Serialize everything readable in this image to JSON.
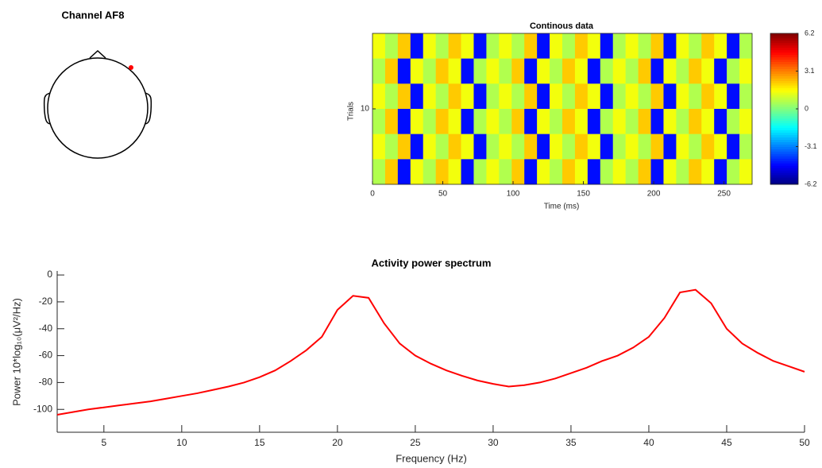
{
  "chart_data": [
    {
      "type": "topo",
      "title": "Channel AF8"
    },
    {
      "type": "heatmap",
      "title": "Continous data",
      "xlabel": "Time (ms)",
      "ylabel": "Trials",
      "xlim": [
        0,
        270
      ],
      "xticks": [
        0,
        50,
        100,
        150,
        200,
        250
      ],
      "ylim": [
        0.5,
        19.5
      ],
      "yticks": [
        10
      ],
      "clim": [
        -6.2,
        6.2
      ],
      "cticks": [
        -6.2,
        -3.1,
        0,
        3.1,
        6.2
      ],
      "colormap": "jet",
      "values": [
        [
          1.4,
          0.6,
          2.2,
          -4.5,
          1.4,
          0.6,
          2.2,
          1.4,
          -4.5,
          0.6,
          1.4,
          0.6,
          2.2,
          -4.5,
          1.4,
          0.6,
          2.2,
          1.4,
          -4.5,
          0.6,
          1.4,
          0.6,
          2.2,
          -4.5,
          1.4,
          0.6,
          2.2,
          1.4,
          -4.5,
          0.6
        ],
        [
          0.6,
          2.2,
          -4.5,
          1.4,
          0.6,
          2.2,
          1.4,
          -4.5,
          0.6,
          1.4,
          0.6,
          2.2,
          -4.5,
          1.4,
          0.6,
          2.2,
          1.4,
          -4.5,
          0.6,
          1.4,
          0.6,
          2.2,
          -4.5,
          1.4,
          0.6,
          2.2,
          1.4,
          -4.5,
          0.6,
          1.4
        ],
        [
          1.4,
          0.6,
          2.2,
          -4.5,
          1.4,
          0.6,
          2.2,
          1.4,
          -4.5,
          0.6,
          1.4,
          0.6,
          2.2,
          -4.5,
          1.4,
          0.6,
          2.2,
          1.4,
          -4.5,
          0.6,
          1.4,
          0.6,
          2.2,
          -4.5,
          1.4,
          0.6,
          2.2,
          1.4,
          -4.5,
          0.6
        ],
        [
          0.6,
          2.2,
          -4.5,
          1.4,
          0.6,
          2.2,
          1.4,
          -4.5,
          0.6,
          1.4,
          0.6,
          2.2,
          -4.5,
          1.4,
          0.6,
          2.2,
          1.4,
          -4.5,
          0.6,
          1.4,
          0.6,
          2.2,
          -4.5,
          1.4,
          0.6,
          2.2,
          1.4,
          -4.5,
          0.6,
          1.4
        ],
        [
          1.4,
          0.6,
          2.2,
          -4.5,
          1.4,
          0.6,
          2.2,
          1.4,
          -4.5,
          0.6,
          1.4,
          0.6,
          2.2,
          -4.5,
          1.4,
          0.6,
          2.2,
          1.4,
          -4.5,
          0.6,
          1.4,
          0.6,
          2.2,
          -4.5,
          1.4,
          0.6,
          2.2,
          1.4,
          -4.5,
          0.6
        ],
        [
          0.6,
          2.2,
          -4.5,
          1.4,
          0.6,
          2.2,
          1.4,
          -4.5,
          0.6,
          1.4,
          0.6,
          2.2,
          -4.5,
          1.4,
          0.6,
          2.2,
          1.4,
          -4.5,
          0.6,
          1.4,
          0.6,
          2.2,
          -4.5,
          1.4,
          0.6,
          2.2,
          1.4,
          -4.5,
          0.6,
          1.4
        ]
      ]
    },
    {
      "type": "line",
      "title": "Activity power spectrum",
      "xlabel": "Frequency (Hz)",
      "ylabel": "Power 10*log₁₀(μV²/Hz)",
      "x": [
        2,
        3,
        4,
        5,
        6,
        7,
        8,
        9,
        10,
        11,
        12,
        13,
        14,
        15,
        16,
        17,
        18,
        19,
        20,
        21,
        22,
        23,
        24,
        25,
        26,
        27,
        28,
        29,
        30,
        31,
        32,
        33,
        34,
        35,
        36,
        37,
        38,
        39,
        40,
        41,
        42,
        43,
        44,
        45,
        46,
        47,
        48,
        49,
        50
      ],
      "series": [
        {
          "color": "#ff0000",
          "values": [
            -104,
            -102,
            -100,
            -98.5,
            -97,
            -95.5,
            -94,
            -92,
            -90,
            -88,
            -85.5,
            -83,
            -80,
            -76,
            -71,
            -64,
            -56,
            -46,
            -26,
            -15.5,
            -17,
            -36,
            -51,
            -60,
            -66,
            -71,
            -75,
            -78.5,
            -81,
            -83,
            -82,
            -80,
            -77,
            -73,
            -69,
            -64,
            -60,
            -54,
            -46,
            -32,
            -13,
            -11,
            -21,
            -40,
            -51,
            -58,
            -64,
            -68,
            -72
          ]
        }
      ],
      "xlim": [
        2,
        50
      ],
      "xticks": [
        5,
        10,
        15,
        20,
        25,
        30,
        35,
        40,
        45,
        50
      ],
      "ylim": [
        -117,
        3
      ],
      "yticks": [
        -100,
        -80,
        -60,
        -40,
        -20,
        0
      ]
    }
  ]
}
